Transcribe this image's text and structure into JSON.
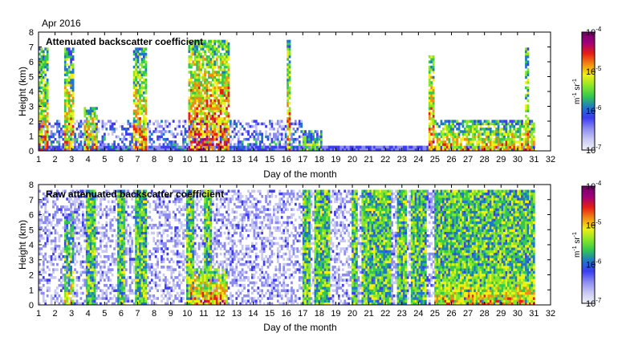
{
  "figure": {
    "title": "Apr 2016",
    "colorbar_unit_main": "m",
    "colorbar_unit_exp1": "-1",
    "colorbar_unit_mid": " sr",
    "colorbar_unit_exp2": "-1"
  },
  "colors": {
    "colormap": [
      "#f2f2f8",
      "#c8c8f4",
      "#8c8cf0",
      "#3c3cf0",
      "#1e78c8",
      "#32c850",
      "#8ce628",
      "#f0f014",
      "#f08c14",
      "#e61e14",
      "#a00078",
      "#6e0064"
    ],
    "background": "#ffffff",
    "frame": "#000000"
  },
  "chart_data": [
    {
      "type": "heatmap",
      "title": "Attenuated backscatter coefficient",
      "xlabel": "Day of the month",
      "ylabel": "Height (km)",
      "xlim": [
        1,
        32
      ],
      "ylim": [
        0,
        8
      ],
      "x_ticks": [
        "1",
        "2",
        "3",
        "4",
        "5",
        "6",
        "7",
        "8",
        "9",
        "10",
        "11",
        "12",
        "13",
        "14",
        "15",
        "16",
        "17",
        "18",
        "19",
        "20",
        "21",
        "22",
        "23",
        "24",
        "25",
        "26",
        "27",
        "28",
        "29",
        "30",
        "31",
        "32"
      ],
      "y_ticks": [
        "0",
        "1",
        "2",
        "3",
        "4",
        "5",
        "6",
        "7",
        "8"
      ],
      "colorbar": {
        "scale": "log",
        "range": [
          1e-07,
          0.0001
        ],
        "tick_bases": [
          "10",
          "10",
          "10",
          "10"
        ],
        "tick_exps": [
          "-7",
          "-6",
          "-5",
          "-4"
        ],
        "tick_values": [
          -7,
          -6,
          -5,
          -4
        ]
      },
      "features": [
        {
          "day_start": 1.0,
          "day_end": 17.0,
          "height_top_km": 2.0,
          "level": "low",
          "description_level": 0.3
        },
        {
          "day_start": 1.0,
          "day_end": 1.6,
          "height_top_km": 7.0,
          "level": "high",
          "description_level": 0.7
        },
        {
          "day_start": 2.6,
          "day_end": 3.2,
          "height_top_km": 7.0,
          "level": "high",
          "description_level": 0.7
        },
        {
          "day_start": 3.8,
          "day_end": 4.6,
          "height_top_km": 3.0,
          "level": "high",
          "description_level": 0.75
        },
        {
          "day_start": 6.7,
          "day_end": 7.6,
          "height_top_km": 7.0,
          "level": "high",
          "description_level": 0.7
        },
        {
          "day_start": 10.1,
          "day_end": 12.6,
          "height_top_km": 7.5,
          "level": "high",
          "description_level": 0.8
        },
        {
          "day_start": 16.0,
          "day_end": 16.3,
          "height_top_km": 7.5,
          "level": "high",
          "description_level": 0.75
        },
        {
          "day_start": 17.0,
          "day_end": 18.2,
          "height_top_km": 1.4,
          "level": "mid",
          "description_level": 0.55
        },
        {
          "day_start": 24.6,
          "day_end": 25.0,
          "height_top_km": 6.5,
          "level": "high",
          "description_level": 0.75
        },
        {
          "day_start": 25.0,
          "day_end": 31.0,
          "height_top_km": 2.0,
          "level": "high",
          "description_level": 0.7
        },
        {
          "day_start": 30.4,
          "day_end": 30.7,
          "height_top_km": 7.0,
          "level": "high",
          "description_level": 0.7
        }
      ]
    },
    {
      "type": "heatmap",
      "title": "Raw attenuated backscatter coefficient",
      "xlabel": "Day of the month",
      "ylabel": "Height (km)",
      "xlim": [
        1,
        32
      ],
      "ylim": [
        0,
        8
      ],
      "x_ticks": [
        "1",
        "2",
        "3",
        "4",
        "5",
        "6",
        "7",
        "8",
        "9",
        "10",
        "11",
        "12",
        "13",
        "14",
        "15",
        "16",
        "17",
        "18",
        "19",
        "20",
        "21",
        "22",
        "23",
        "24",
        "25",
        "26",
        "27",
        "28",
        "29",
        "30",
        "31",
        "32"
      ],
      "y_ticks": [
        "0",
        "1",
        "2",
        "3",
        "4",
        "5",
        "6",
        "7",
        "8"
      ],
      "colorbar": {
        "scale": "log",
        "range": [
          1e-07,
          0.0001
        ],
        "tick_bases": [
          "10",
          "10",
          "10",
          "10"
        ],
        "tick_exps": [
          "-7",
          "-6",
          "-5",
          "-4"
        ],
        "tick_values": [
          -7,
          -6,
          -5,
          -4
        ]
      },
      "noise_bands": [
        {
          "day_start": 3.9,
          "day_end": 4.5
        },
        {
          "day_start": 5.8,
          "day_end": 6.2
        },
        {
          "day_start": 6.8,
          "day_end": 7.6
        },
        {
          "day_start": 10.0,
          "day_end": 10.4
        },
        {
          "day_start": 11.0,
          "day_end": 11.5
        },
        {
          "day_start": 17.0,
          "day_end": 17.4
        },
        {
          "day_start": 17.7,
          "day_end": 18.7
        },
        {
          "day_start": 20.0,
          "day_end": 20.3
        },
        {
          "day_start": 20.6,
          "day_end": 22.4
        },
        {
          "day_start": 22.7,
          "day_end": 23.3
        },
        {
          "day_start": 23.5,
          "day_end": 24.5
        },
        {
          "day_start": 25.0,
          "day_end": 31.0
        }
      ],
      "features": [
        {
          "day_start": 10.2,
          "day_end": 12.4,
          "height_top_km": 2.5,
          "level": "high",
          "description_level": 0.75
        },
        {
          "day_start": 2.6,
          "day_end": 3.1,
          "height_top_km": 6.0,
          "level": "mid",
          "description_level": 0.6
        },
        {
          "day_start": 25.0,
          "day_end": 31.0,
          "height_top_km": 2.0,
          "level": "high",
          "description_level": 0.7
        }
      ]
    }
  ]
}
